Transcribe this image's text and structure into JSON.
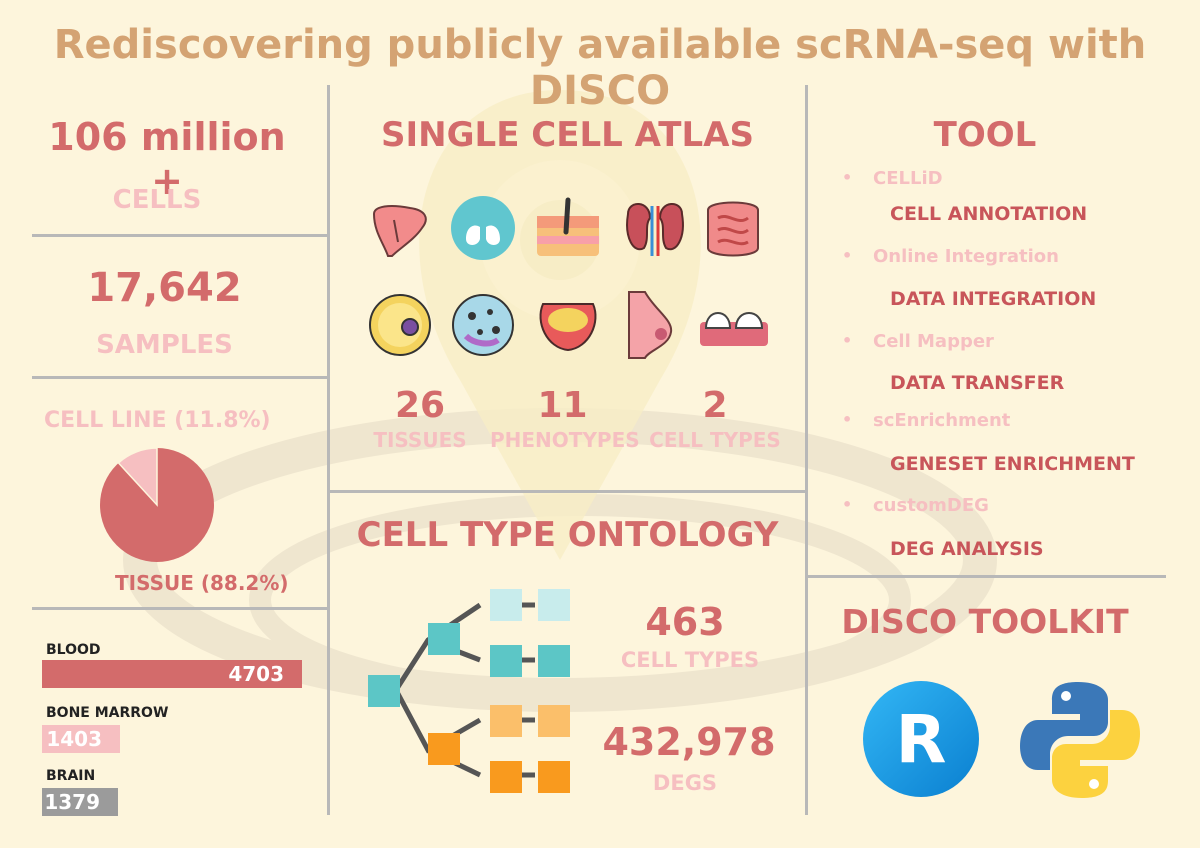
{
  "title": "Rediscovering publicly available scRNA-seq with DISCO",
  "colors": {
    "title": "#d4a373",
    "accent": "#d36b6b",
    "pink": "#f6bfc1",
    "gray": "#9b9b9b",
    "background": "#fdf5dc"
  },
  "stats": {
    "cells_value": "106 million +",
    "cells_label": "CELLS",
    "samples_value": "17,642",
    "samples_label": "SAMPLES",
    "cell_line_label": "CELL LINE (11.8%)",
    "tissue_label": "TISSUE (88.2%)",
    "cell_line_fraction": 0.118
  },
  "bars": [
    {
      "label": "BLOOD",
      "value": 4703,
      "color": "#d36b6b"
    },
    {
      "label": "BONE MARROW",
      "value": 1403,
      "color": "#f6bfc1"
    },
    {
      "label": "BRAIN",
      "value": 1379,
      "color": "#9b9b9b"
    }
  ],
  "atlas": {
    "title": "SINGLE CELL ATLAS",
    "icons": [
      "liver-icon",
      "lung-icon",
      "skin-icon",
      "kidney-icon",
      "intestine-icon",
      "eye-cell-icon",
      "cell-icon",
      "bladder-icon",
      "breast-icon",
      "teeth-icon"
    ],
    "counts": [
      {
        "value": "26",
        "label": "TISSUES"
      },
      {
        "value": "11",
        "label": "PHENOTYPES"
      },
      {
        "value": "2",
        "label": "CELL TYPES"
      }
    ]
  },
  "ontology": {
    "title": "CELL TYPE ONTOLOGY",
    "cell_types_value": "463",
    "cell_types_label": "CELL TYPES",
    "degs_value": "432,978",
    "degs_label": "DEGS"
  },
  "tool": {
    "title": "TOOL",
    "items": [
      {
        "name": "CELLiD",
        "desc": "CELL ANNOTATION"
      },
      {
        "name": "Online Integration",
        "desc": "DATA INTEGRATION"
      },
      {
        "name": "Cell Mapper",
        "desc": "DATA TRANSFER"
      },
      {
        "name": "scEnrichment",
        "desc": "GENESET ENRICHMENT"
      },
      {
        "name": "customDEG",
        "desc": "DEG ANALYSIS"
      }
    ]
  },
  "toolkit": {
    "title": "DISCO TOOLKIT",
    "r_letter": "R"
  }
}
